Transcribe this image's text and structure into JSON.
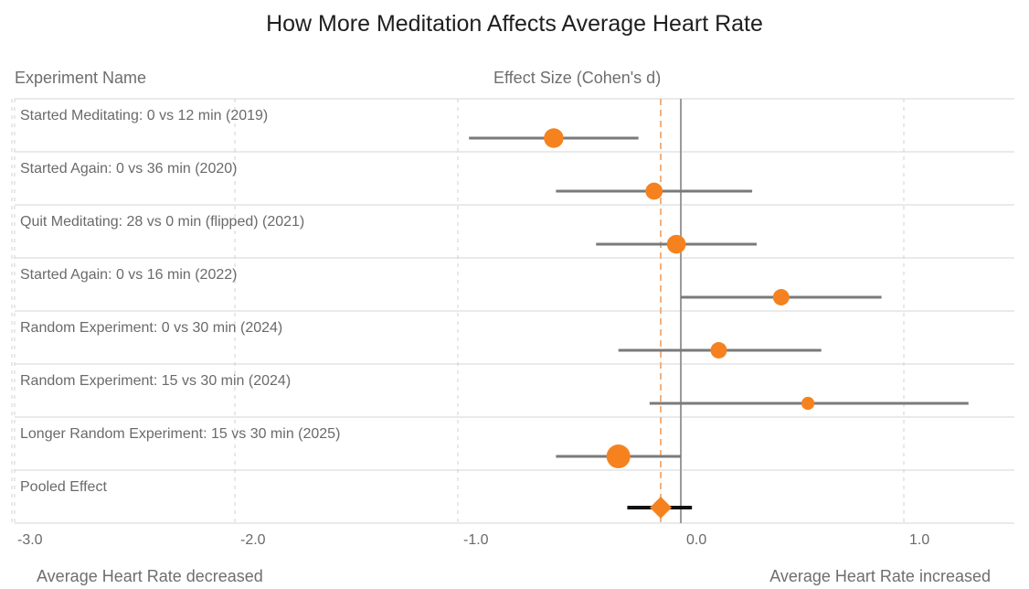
{
  "chart_data": {
    "type": "forest",
    "title": "How More Meditation Affects Average Heart Rate",
    "column_headers": {
      "left": "Experiment Name",
      "center": "Effect Size (Cohen's d)"
    },
    "footer": {
      "left": "Average Heart Rate decreased",
      "right": "Average Heart Rate increased"
    },
    "x_ticks": [
      {
        "value": -3.0,
        "label": "-3.0"
      },
      {
        "value": -2.0,
        "label": "-2.0"
      },
      {
        "value": -1.0,
        "label": "-1.0"
      },
      {
        "value": 0.0,
        "label": "0.0"
      },
      {
        "value": 1.0,
        "label": "1.0"
      }
    ],
    "xlim": [
      -3.0,
      1.5
    ],
    "rows": [
      {
        "name": "Started Meditating: 0 vs 12 min (2019)",
        "estimate": -0.57,
        "ci_low": -0.95,
        "ci_high": -0.19,
        "weight": 0.75
      },
      {
        "name": "Started Again: 0 vs 36 min (2020)",
        "estimate": -0.12,
        "ci_low": -0.56,
        "ci_high": 0.32,
        "weight": 0.6
      },
      {
        "name": "Quit Meditating: 28 vs 0 min (flipped) (2021)",
        "estimate": -0.02,
        "ci_low": -0.38,
        "ci_high": 0.34,
        "weight": 0.7
      },
      {
        "name": "Started Again: 0 vs 16 min (2022)",
        "estimate": 0.45,
        "ci_low": 0.0,
        "ci_high": 0.9,
        "weight": 0.55
      },
      {
        "name": "Random Experiment: 0 vs 30 min (2024)",
        "estimate": 0.17,
        "ci_low": -0.28,
        "ci_high": 0.63,
        "weight": 0.55
      },
      {
        "name": "Random Experiment: 15 vs 30 min (2024)",
        "estimate": 0.57,
        "ci_low": -0.14,
        "ci_high": 1.29,
        "weight": 0.35
      },
      {
        "name": "Longer Random Experiment: 15 vs 30 min (2025)",
        "estimate": -0.28,
        "ci_low": -0.56,
        "ci_high": 0.0,
        "weight": 1.0
      }
    ],
    "pooled": {
      "name": "Pooled Effect",
      "estimate": -0.09,
      "ci_low": -0.24,
      "ci_high": 0.05
    },
    "reference_line": 0.0,
    "pooled_line": -0.09,
    "colors": {
      "marker": "#f5821f",
      "ci_line": "#7a7a7a",
      "pooled_ci": "#111111",
      "pooled_dashed": "#f4b07a",
      "reference": "#9a9a9a",
      "grid": "#d0d0d0"
    }
  }
}
